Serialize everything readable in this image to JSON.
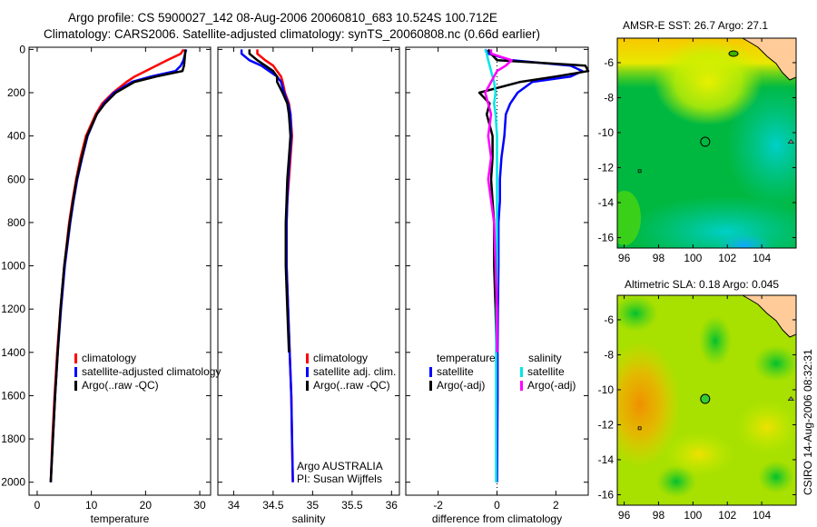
{
  "title_line1": "Argo profile: CS 5900027_142 08-Aug-2006 20060810_683 10.524S 100.712E",
  "title_line2": "Climatology: CARS2006. Satellite-adjusted climatology: synTS_20060808.nc (0.66d earlier)",
  "side_label": "CSIRO 14-Aug-2006 08:32:31",
  "chart_data": [
    {
      "type": "line",
      "name": "temperature",
      "xlabel": "temperature",
      "ylabel": "",
      "xlim": [
        -1.5,
        32
      ],
      "ylim": [
        2060,
        -10
      ],
      "xticks": [
        0,
        10,
        20,
        30
      ],
      "yticks": [
        0,
        200,
        400,
        600,
        800,
        1000,
        1200,
        1400,
        1600,
        1800,
        2000
      ],
      "depth": [
        0,
        20,
        50,
        75,
        100,
        125,
        150,
        200,
        250,
        300,
        400,
        500,
        600,
        700,
        800,
        1000,
        1200,
        1400,
        1600,
        1800,
        2000
      ],
      "series": [
        {
          "name": "climatology",
          "color": "#ff0000",
          "values": [
            27,
            26.5,
            24,
            22,
            20,
            18,
            16.5,
            14,
            12,
            10.8,
            9,
            8,
            7.2,
            6.5,
            5.9,
            5,
            4.3,
            3.7,
            3.2,
            2.8,
            2.5
          ]
        },
        {
          "name": "satellite-adjusted climatology",
          "color": "#0000ff",
          "values": [
            27.5,
            27.3,
            27,
            26.5,
            25.5,
            21,
            17.5,
            14.2,
            12.3,
            11,
            9.3,
            8.3,
            7.4,
            6.7,
            6.1,
            5.1,
            4.4,
            3.8,
            3.3,
            2.9,
            2.5
          ]
        },
        {
          "name": "Argo(..raw -QC)",
          "color": "#000000",
          "values": [
            27.3,
            27.3,
            27.2,
            27.1,
            26.8,
            22,
            18,
            14.5,
            12.5,
            11,
            9.2,
            8.2,
            7.3,
            6.6,
            6,
            5,
            4.3,
            3.8,
            3.3,
            2.9,
            2.5
          ]
        }
      ],
      "legend": [
        "climatology",
        "satellite-adjusted climatology",
        "Argo(..raw -QC)"
      ]
    },
    {
      "type": "line",
      "name": "salinity",
      "xlabel": "salinity",
      "xlim": [
        33.8,
        36.1
      ],
      "ylim": [
        2060,
        -10
      ],
      "xticks": [
        34,
        34.5,
        35,
        35.5,
        36
      ],
      "depth": [
        0,
        20,
        50,
        75,
        100,
        125,
        150,
        200,
        250,
        300,
        400,
        500,
        600,
        700,
        800,
        1000,
        1200,
        1400,
        1600,
        1800,
        2000
      ],
      "series": [
        {
          "name": "climatology",
          "color": "#ff0000",
          "values": [
            34.3,
            34.3,
            34.4,
            34.5,
            34.55,
            34.6,
            34.62,
            34.65,
            34.7,
            34.72,
            34.74,
            34.72,
            34.7,
            34.68,
            34.67,
            34.67,
            34.69,
            34.71,
            34.73,
            34.74,
            34.75
          ]
        },
        {
          "name": "satellite adj. clim.",
          "color": "#0000ff",
          "values": [
            34.1,
            34.1,
            34.2,
            34.35,
            34.45,
            34.55,
            34.6,
            34.64,
            34.69,
            34.72,
            34.73,
            34.71,
            34.69,
            34.68,
            34.67,
            34.67,
            34.69,
            34.71,
            34.73,
            34.74,
            34.75
          ]
        },
        {
          "name": "Argo(..raw -QC)",
          "color": "#000000",
          "values": [
            34.2,
            34.2,
            34.3,
            34.4,
            34.5,
            34.55,
            34.55,
            34.62,
            34.68,
            34.7,
            34.72,
            34.7,
            34.68,
            34.67,
            34.66,
            34.66,
            34.68,
            34.7,
            null,
            null,
            null
          ]
        }
      ],
      "legend": [
        "climatology",
        "satellite adj. clim.",
        "Argo(..raw -QC)"
      ],
      "annotation": [
        "Argo AUSTRALIA",
        "PI: Susan Wijffels"
      ]
    },
    {
      "type": "line",
      "name": "difference",
      "xlabel": "difference from climatology",
      "xlim": [
        -3.1,
        3.1
      ],
      "ylim": [
        2060,
        -10
      ],
      "xticks": [
        -2,
        0,
        2
      ],
      "depth": [
        0,
        20,
        50,
        75,
        100,
        125,
        150,
        200,
        250,
        300,
        400,
        500,
        600,
        700,
        800,
        1000,
        1200,
        1400,
        1600,
        1800,
        2000
      ],
      "series": [
        {
          "name": "temperature satellite",
          "color": "#0000ff",
          "values": [
            -0.4,
            -0.3,
            0.5,
            2.5,
            2.9,
            2.5,
            1.2,
            0.7,
            0.45,
            0.3,
            0.25,
            0.15,
            0.1,
            0.1,
            0.05,
            0.05,
            0.03,
            0.02,
            0.02,
            0.01,
            0
          ]
        },
        {
          "name": "temperature Argo(-adj)",
          "color": "#000000",
          "values": [
            -0.3,
            -0.2,
            0,
            3,
            3.1,
            2,
            0.8,
            -0.6,
            -0.25,
            -0.35,
            -0.15,
            -0.15,
            -0.2,
            -0.15,
            -0.1,
            -0.1,
            -0.05,
            -0.02,
            null,
            null,
            null
          ]
        },
        {
          "name": "salinity satellite",
          "color": "#00e5e5",
          "values": [
            -0.4,
            -0.35,
            -0.3,
            -0.25,
            -0.2,
            -0.15,
            -0.1,
            -0.05,
            -0.1,
            -0.05,
            0,
            0,
            0,
            0,
            0,
            0,
            -0.02,
            -0.03,
            -0.03,
            -0.03,
            -0.03
          ]
        },
        {
          "name": "salinity Argo(-adj)",
          "color": "#ff00ff",
          "values": [
            -0.2,
            -0.2,
            0.5,
            0.3,
            0,
            -0.1,
            -0.2,
            -0.4,
            -0.3,
            -0.2,
            -0.3,
            -0.2,
            -0.3,
            -0.2,
            -0.1,
            -0.05,
            0,
            0,
            null,
            null,
            null
          ]
        }
      ],
      "legend_headers": [
        "temperature",
        "salinity"
      ],
      "legend": [
        "satellite",
        "Argo(-adj)",
        "satellite",
        "Argo(-adj)"
      ]
    },
    {
      "type": "heatmap",
      "name": "sst-map",
      "title": "AMSR-E SST: 26.7 Argo: 27.1",
      "xlim": [
        95.6,
        106
      ],
      "ylim": [
        -16.6,
        -4.6
      ],
      "xticks": [
        96,
        98,
        100,
        102,
        104
      ],
      "yticks": [
        -6,
        -8,
        -10,
        -12,
        -14,
        -16
      ],
      "marker": [
        100.712,
        -10.524
      ],
      "marker_color": "none"
    },
    {
      "type": "heatmap",
      "name": "sla-map",
      "title": "Altimetric SLA: 0.18 Argo: 0.045",
      "xlim": [
        95.6,
        106
      ],
      "ylim": [
        -16.6,
        -4.6
      ],
      "xticks": [
        96,
        98,
        100,
        102,
        104
      ],
      "yticks": [
        -6,
        -8,
        -10,
        -12,
        -14,
        -16
      ],
      "marker": [
        100.712,
        -10.524
      ],
      "marker_color": "#33cc33"
    }
  ]
}
